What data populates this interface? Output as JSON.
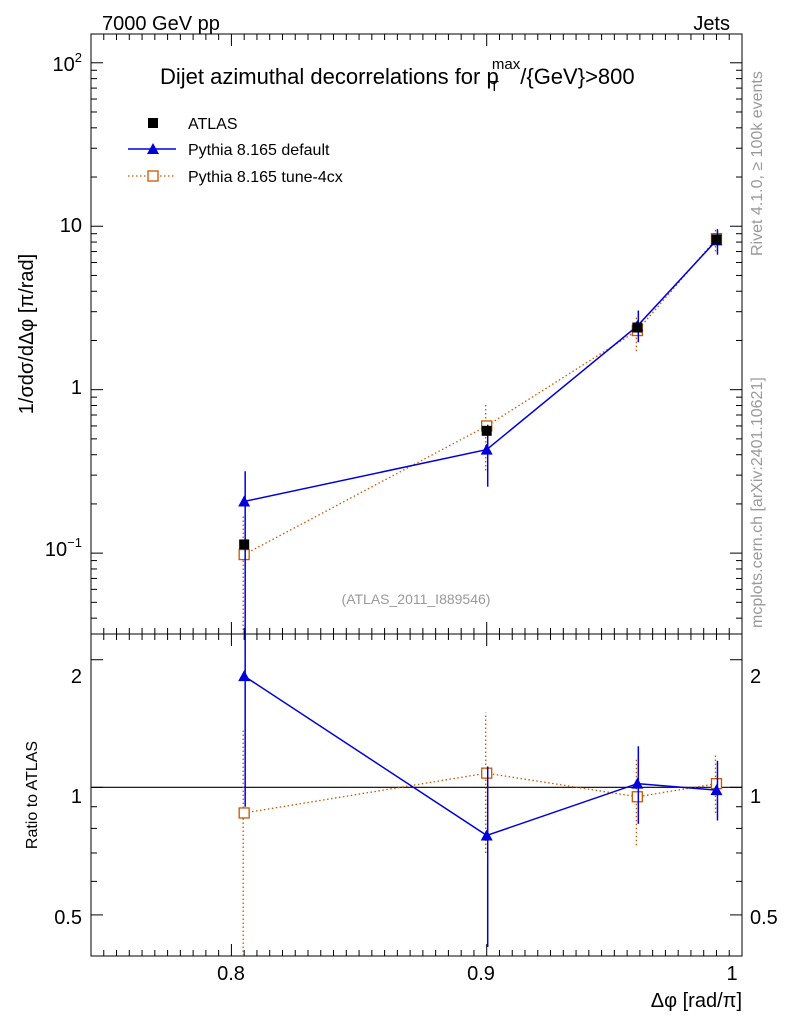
{
  "header": {
    "left_label": "7000 GeV pp",
    "right_label": "Jets",
    "title": "Dijet azimuthal decorrelations for p",
    "title_sub": "T",
    "title_sup": "max",
    "title_suffix": "/{GeV}>800",
    "analysis_id": "(ATLAS_2011_I889546)"
  },
  "side_labels": {
    "rivet": "Rivet 4.1.0, ≥ 100k events",
    "mcplots": "mcplots.cern.ch [arXiv:2401.10621]"
  },
  "colors": {
    "data": "#000000",
    "default": "#0000dd",
    "tune": "#cc5500",
    "axis": "#000000",
    "watermark": "#999999"
  },
  "chart_data": [
    {
      "type": "scatter",
      "panel": "main",
      "title": "Dijet azimuthal decorrelations for p_T^max/{GeV}>800",
      "xlabel": "Δφ [rad/π]",
      "ylabel": "1/σdσ/dΔφ [π/rad]",
      "xlim": [
        0.745,
        1.0
      ],
      "ylim": [
        0.032,
        150
      ],
      "yscale": "log",
      "y_tick_labels": [
        "10",
        "1",
        "10"
      ],
      "y_tick_exponents": [
        "2",
        "",
        "−1"
      ],
      "legend_position": "top-left",
      "series": [
        {
          "name": "ATLAS",
          "style": "data",
          "x": [
            0.805,
            0.9,
            0.959,
            0.99
          ],
          "y": [
            0.113,
            0.56,
            2.4,
            8.3
          ],
          "err_low": [
            0.005,
            0.03,
            0.1,
            0.35
          ],
          "err_high": [
            0.005,
            0.03,
            0.1,
            0.35
          ]
        },
        {
          "name": "Pythia 8.165 default",
          "style": "default",
          "x": [
            0.805,
            0.9,
            0.959,
            0.99
          ],
          "y": [
            0.207,
            0.43,
            2.45,
            8.2
          ],
          "err_low": [
            0.2,
            0.175,
            0.5,
            1.5
          ],
          "err_high": [
            0.11,
            0.18,
            0.6,
            1.4
          ]
        },
        {
          "name": "Pythia 8.165 tune-4cx",
          "style": "tune",
          "x": [
            0.805,
            0.9,
            0.959,
            0.99
          ],
          "y": [
            0.098,
            0.6,
            2.3,
            8.4
          ],
          "err_low": [
            0.097,
            0.28,
            0.58,
            1.4
          ],
          "err_high": [
            0.075,
            0.21,
            0.5,
            1.3
          ]
        }
      ]
    },
    {
      "type": "scatter",
      "panel": "ratio",
      "xlabel": "Δφ [rad/π]",
      "ylabel": "Ratio to ATLAS",
      "xlim": [
        0.745,
        1.0
      ],
      "ylim": [
        0.4,
        2.3
      ],
      "yscale": "log",
      "x_ticks": [
        "0.8",
        "0.9",
        "1"
      ],
      "y_ticks": [
        "0.5",
        "1",
        "2"
      ],
      "reference_line": 1,
      "series": [
        {
          "name": "Pythia 8.165 default",
          "style": "default",
          "x": [
            0.805,
            0.9,
            0.959,
            0.99
          ],
          "y": [
            1.83,
            0.77,
            1.02,
            0.985
          ],
          "err_low": [
            0.93,
            0.35,
            0.2,
            0.15
          ],
          "err_high": [
            0.5,
            0.35,
            0.23,
            0.17
          ]
        },
        {
          "name": "Pythia 8.165 tune-4cx",
          "style": "tune",
          "x": [
            0.805,
            0.9,
            0.959,
            0.99
          ],
          "y": [
            0.87,
            1.08,
            0.95,
            1.02
          ],
          "err_low": [
            0.6,
            0.38,
            0.22,
            0.15
          ],
          "err_high": [
            0.5,
            0.42,
            0.22,
            0.18
          ]
        }
      ]
    }
  ]
}
